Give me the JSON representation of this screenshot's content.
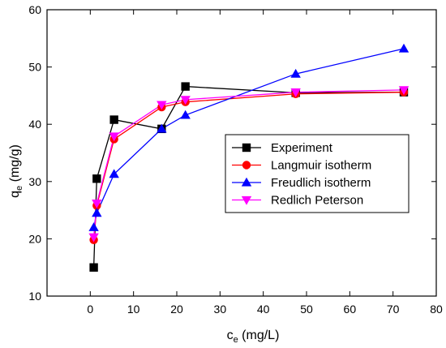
{
  "chart_data": {
    "type": "line",
    "xlabel_main": "c",
    "xlabel_sub": "e",
    "xlabel_unit": " (mg/L)",
    "ylabel_main": "q",
    "ylabel_sub": "e",
    "ylabel_unit": " (mg/g)",
    "xlim": [
      -10,
      80
    ],
    "ylim": [
      10,
      60
    ],
    "xticks": [
      0,
      10,
      20,
      30,
      40,
      50,
      60,
      70,
      80
    ],
    "yticks": [
      10,
      20,
      30,
      40,
      50,
      60
    ],
    "grid": false,
    "legend_position": "center-right",
    "series": [
      {
        "name": "Experiment",
        "color": "#000000",
        "marker": "square",
        "x": [
          0.8,
          1.5,
          5.5,
          16.5,
          22.0,
          47.5,
          72.5
        ],
        "y": [
          15.0,
          30.5,
          40.8,
          39.2,
          46.6,
          45.5,
          45.6
        ]
      },
      {
        "name": "Langmuir isotherm",
        "color": "#ff0000",
        "marker": "circle",
        "x": [
          0.8,
          1.5,
          5.5,
          16.5,
          22.0,
          47.5,
          72.5
        ],
        "y": [
          19.8,
          25.8,
          37.4,
          43.0,
          43.9,
          45.3,
          45.6
        ]
      },
      {
        "name": "Freudlich isotherm",
        "color": "#0000ff",
        "marker": "triangle-up",
        "x": [
          0.8,
          1.5,
          5.5,
          16.5,
          22.0,
          47.5,
          72.5
        ],
        "y": [
          22.0,
          24.5,
          31.3,
          39.2,
          41.6,
          48.8,
          53.2
        ]
      },
      {
        "name": "Redlich Peterson",
        "color": "#ff00ff",
        "marker": "triangle-down",
        "x": [
          0.8,
          1.5,
          5.5,
          16.5,
          22.0,
          47.5,
          72.5
        ],
        "y": [
          20.3,
          26.2,
          37.9,
          43.4,
          44.3,
          45.6,
          46.0
        ]
      }
    ]
  }
}
